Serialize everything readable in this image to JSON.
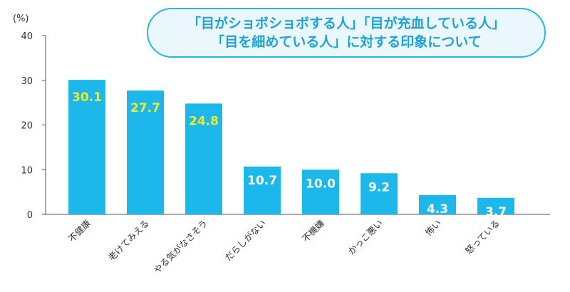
{
  "chart_data": {
    "type": "bar",
    "title_lines": [
      "「目がショボショボする人」「目が充血している人」",
      "「目を細めている人」に対する印象について"
    ],
    "ylabel": "(%)",
    "ylim": [
      0,
      40
    ],
    "yticks": [
      "0",
      "10",
      "20",
      "30",
      "40"
    ],
    "categories": [
      "不健康",
      "老けてみえる",
      "やる気がなさそう",
      "だらしがない",
      "不機嫌",
      "かっこ悪い",
      "怖い",
      "怒っている"
    ],
    "values": [
      30.1,
      27.7,
      24.8,
      10.7,
      10.0,
      9.2,
      4.3,
      3.7
    ],
    "value_labels": [
      "30.1",
      "27.7",
      "24.8",
      "10.7",
      "10.0",
      "9.2",
      "4.3",
      "3.7"
    ],
    "grid": false,
    "colors": {
      "bar": "#1cb8ec",
      "label_highlight": "#f2ea28",
      "label_normal": "#ffffff",
      "axis": "#555555",
      "title_text": "#1ea1d8",
      "title_border": "#29b6e6",
      "title_fill": "#eaf7fd"
    }
  }
}
